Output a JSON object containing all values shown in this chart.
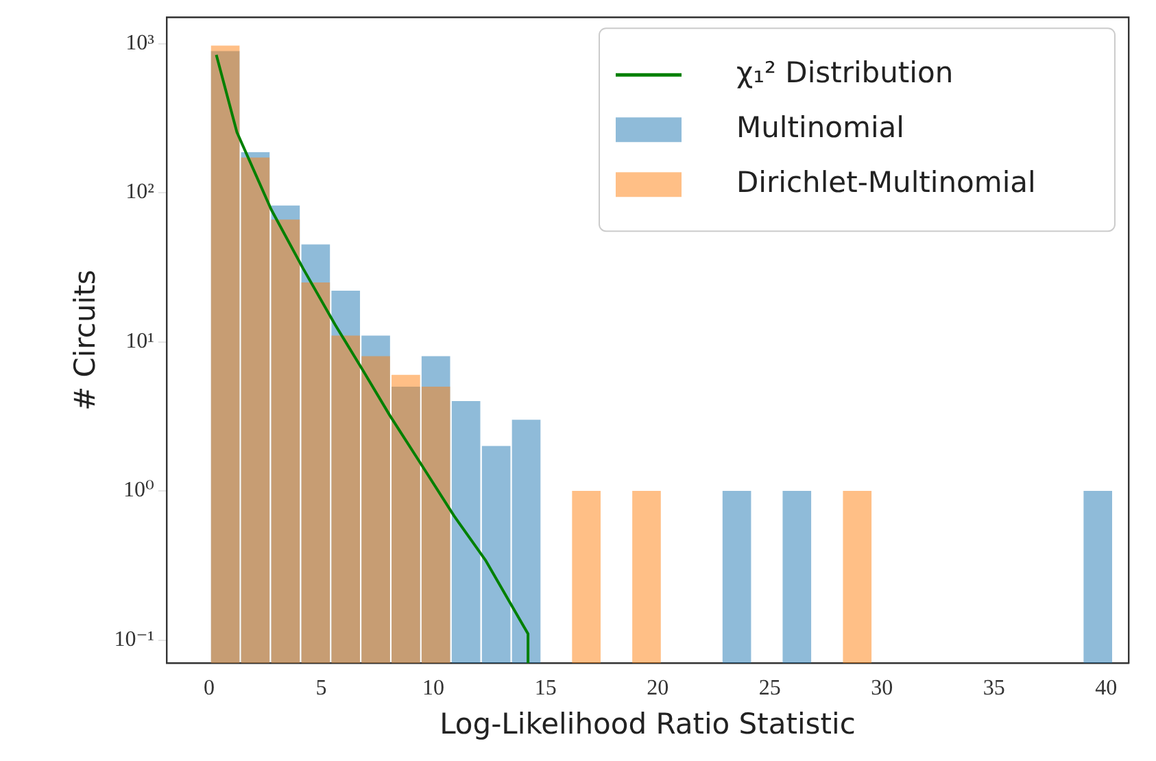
{
  "chart_data": {
    "type": "histogram",
    "xlabel": "Log-Likelihood Ratio Statistic",
    "ylabel": "# Circuits",
    "log": "y",
    "legend": "top right",
    "grid": false,
    "bins": [
      0.05,
      1.39,
      2.73,
      4.08,
      5.42,
      6.76,
      8.1,
      9.44,
      10.78,
      12.13,
      13.47,
      14.81,
      16.15,
      17.49,
      18.83,
      20.18,
      21.52,
      22.86,
      24.2,
      25.54,
      26.88,
      28.23,
      29.57,
      30.91,
      32.25,
      33.59,
      34.93,
      36.28,
      37.62,
      38.96,
      40.3
    ],
    "xlim": [
      -1.9,
      41.0
    ],
    "xticks": [
      0,
      5,
      10,
      15,
      20,
      25,
      30,
      35,
      40
    ],
    "ylim": [
      0.07,
      1500
    ],
    "yticks": [
      {
        "value": 0.1,
        "label": "10⁻¹"
      },
      {
        "value": 1,
        "label": "10⁰"
      },
      {
        "value": 10,
        "label": "10¹"
      },
      {
        "value": 100,
        "label": "10²"
      },
      {
        "value": 1000,
        "label": "10³"
      }
    ],
    "series": [
      {
        "name": "χ₁² Distribution",
        "type": "line",
        "color": "#008000",
        "x": [
          0.32,
          1.24,
          2.77,
          4.19,
          5.62,
          6.84,
          8.06,
          9.49,
          10.92,
          12.34,
          14.22,
          14.22
        ],
        "values": [
          839,
          254,
          77,
          31,
          13,
          6.5,
          3.2,
          1.48,
          0.68,
          0.34,
          0.11,
          0.07
        ]
      },
      {
        "name": "Multinomial",
        "color": "#1f77b4",
        "values": [
          890,
          187,
          82,
          45,
          22,
          11,
          5,
          8,
          4,
          2,
          3,
          null,
          null,
          null,
          null,
          null,
          null,
          1,
          null,
          1,
          null,
          null,
          null,
          null,
          null,
          null,
          null,
          null,
          null,
          1
        ]
      },
      {
        "name": "Dirichlet-Multinomial",
        "color": "#ff7f0e",
        "values": [
          970,
          172,
          66,
          25,
          11,
          8,
          6,
          5,
          null,
          null,
          null,
          null,
          1,
          null,
          1,
          null,
          null,
          null,
          null,
          null,
          null,
          1,
          null,
          null,
          null,
          null,
          null,
          null,
          null,
          null
        ]
      }
    ]
  }
}
